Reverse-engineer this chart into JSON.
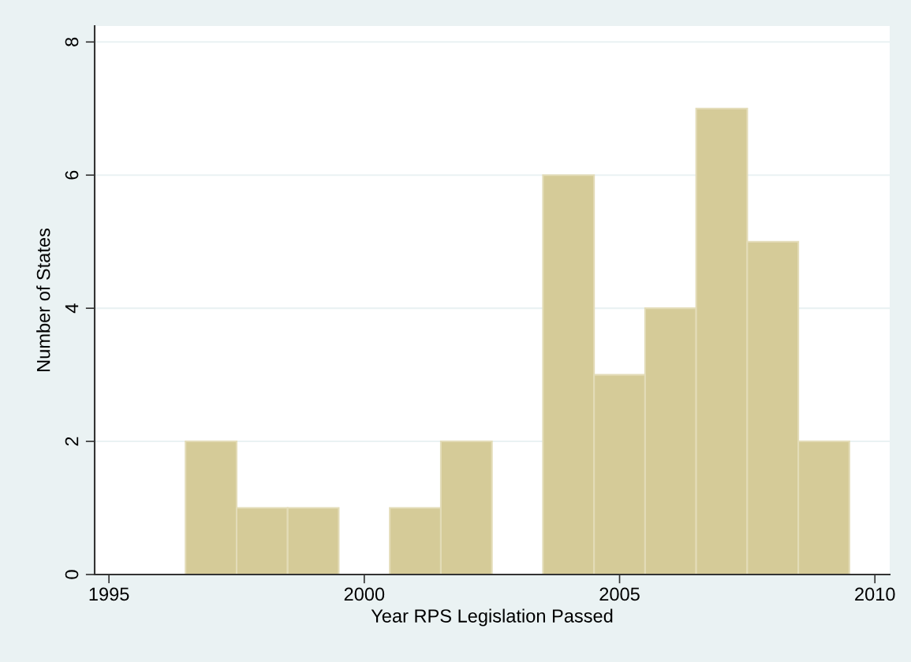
{
  "chart_data": {
    "type": "histogram",
    "xlabel": "Year RPS Legislation Passed",
    "ylabel": "Number of States",
    "bins": [
      1996.5,
      1997.5,
      1998.5,
      1999.5,
      2000.5,
      2001.5,
      2002.5,
      2003.5,
      2004.5,
      2005.5,
      2006.5,
      2007.5,
      2008.5,
      2009.5
    ],
    "values": [
      2,
      1,
      1,
      0,
      1,
      2,
      0,
      6,
      3,
      4,
      7,
      5,
      2
    ],
    "color": "#d5cb98",
    "xlim": [
      1994.72,
      2010.29
    ],
    "xticks": [
      1995,
      2000,
      2005,
      2010
    ],
    "ylim": [
      0,
      8.24
    ],
    "yticks": [
      0,
      2,
      4,
      6,
      8
    ],
    "grid": "y"
  }
}
